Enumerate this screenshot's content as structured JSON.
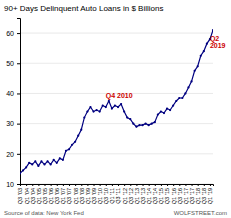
{
  "chart_data": {
    "type": "line",
    "title": "90+ Days Delinquent Auto Loans in $ Billions",
    "source": "Source of data: New York Fed",
    "credit": "WOLFSTREET.com",
    "categories": [
      "Q3\n'03",
      null,
      "Q1\n'04",
      null,
      "Q3\n'04",
      null,
      "Q1\n'05",
      null,
      "Q3\n'05",
      null,
      "Q1\n'06",
      null,
      "Q3\n'06",
      null,
      "Q1\n'07",
      null,
      "Q3\n'07",
      null,
      "Q1\n'08",
      null,
      "Q3\n'08",
      null,
      "Q1\n'09",
      null,
      "Q3\n'09",
      null,
      "Q1\n'10",
      null,
      "Q3\n'10",
      null,
      "Q1\n'11",
      null,
      "Q3\n'11",
      null,
      "Q1\n'12",
      null,
      "Q3\n'12",
      null,
      "Q1\n'13",
      null,
      "Q3\n'13",
      null,
      "Q1\n'14",
      null,
      "Q3\n'14",
      null,
      "Q1\n'15",
      null,
      "Q3\n'15",
      null,
      "Q1\n'16",
      null,
      "Q3\n'16",
      null,
      "Q1\n'17",
      null,
      "Q3\n'17",
      null,
      "Q1\n'18",
      null,
      "Q3\n'18",
      null,
      "Q1\n'19",
      null
    ],
    "values": [
      13.5,
      14.5,
      15.5,
      17.0,
      16.5,
      17.5,
      16.0,
      17.5,
      16.5,
      17.5,
      16.5,
      18.0,
      17.0,
      18.5,
      18.0,
      21.0,
      21.5,
      23.0,
      24.0,
      26.0,
      28.0,
      32.0,
      34.0,
      35.5,
      34.0,
      34.5,
      34.0,
      36.0,
      35.5,
      37.5,
      35.0,
      36.0,
      35.5,
      36.5,
      34.0,
      32.0,
      31.5,
      30.0,
      29.0,
      29.5,
      29.5,
      30.0,
      29.5,
      30.0,
      30.5,
      33.0,
      34.0,
      33.5,
      35.0,
      34.5,
      36.0,
      37.5,
      38.5,
      38.5,
      40.0,
      42.0,
      44.0,
      47.5,
      49.0,
      52.5,
      54.0,
      56.5,
      58.0,
      61.0
    ],
    "color": "#000080",
    "marker": "circle",
    "ylim": [
      10,
      65
    ],
    "yticks": [
      10,
      20,
      30,
      40,
      50,
      60
    ],
    "grid": true,
    "annotations": [
      {
        "text": "Q4 2010",
        "index": 29,
        "color": "#cc0000"
      },
      {
        "text": "Q2\n2019",
        "index": 63,
        "color": "#cc0000"
      }
    ]
  }
}
